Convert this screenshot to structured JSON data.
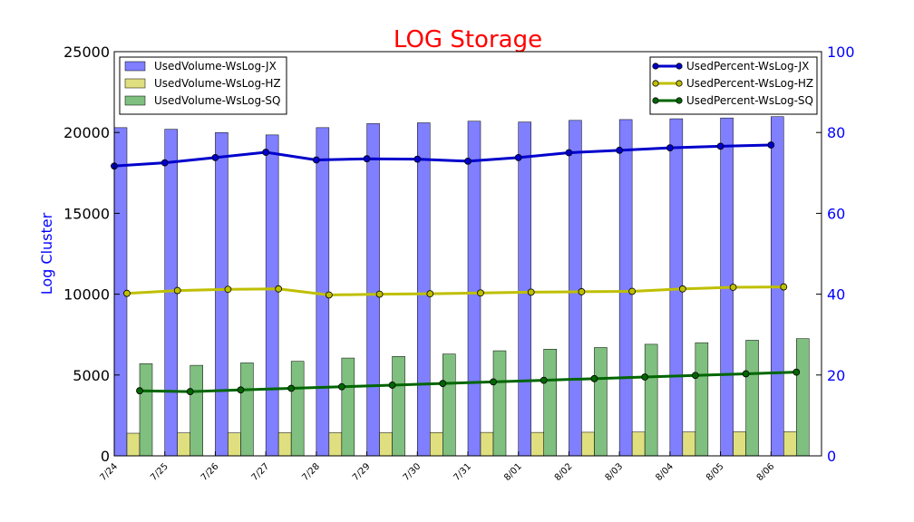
{
  "chart_data": {
    "type": "bar",
    "title": "LOG Storage",
    "title_color": "#ff0000",
    "ylabel": "Log Cluster",
    "ylabel_color": "#0000ff",
    "y2label": "",
    "ylim": [
      0,
      25000
    ],
    "y2lim": [
      0,
      100
    ],
    "yticks": [
      "0",
      "5000",
      "10000",
      "15000",
      "20000",
      "25000"
    ],
    "y2ticks": [
      "0",
      "20",
      "40",
      "60",
      "80",
      "100"
    ],
    "y2tick_color": "#0000ff",
    "categories": [
      "7/24",
      "7/25",
      "7/26",
      "7/27",
      "7/28",
      "7/29",
      "7/30",
      "7/31",
      "8/01",
      "8/02",
      "8/03",
      "8/04",
      "8/05",
      "8/06"
    ],
    "grid": false,
    "legend_bars_position": "top-left",
    "legend_lines_position": "top-right",
    "bar_series": [
      {
        "name": "UsedVolume-WsLog-JX",
        "color": "#7f7fff",
        "values": [
          20300,
          20200,
          20000,
          19850,
          20300,
          20550,
          20600,
          20700,
          20650,
          20750,
          20800,
          20850,
          20900,
          20980
        ]
      },
      {
        "name": "UsedVolume-WsLog-HZ",
        "color": "#dfdf7f",
        "values": [
          1400,
          1420,
          1420,
          1430,
          1430,
          1430,
          1440,
          1450,
          1450,
          1460,
          1470,
          1480,
          1490,
          1490
        ]
      },
      {
        "name": "UsedVolume-WsLog-SQ",
        "color": "#7fbf7f",
        "values": [
          5700,
          5600,
          5750,
          5850,
          6050,
          6150,
          6300,
          6500,
          6600,
          6700,
          6900,
          7000,
          7150,
          7250
        ]
      }
    ],
    "line_series": [
      {
        "name": "UsedPercent-WsLog-JX",
        "color": "#0000cc",
        "values": [
          71.7,
          72.5,
          73.8,
          75.1,
          73.2,
          73.5,
          73.4,
          72.9,
          73.8,
          75.0,
          75.6,
          76.2,
          76.6,
          76.9
        ]
      },
      {
        "name": "UsedPercent-WsLog-HZ",
        "color": "#bfbf00",
        "values": [
          40.2,
          40.9,
          41.2,
          41.3,
          39.8,
          40.0,
          40.1,
          40.3,
          40.5,
          40.6,
          40.7,
          41.3,
          41.7,
          41.8
        ]
      },
      {
        "name": "UsedPercent-WsLog-SQ",
        "color": "#006600",
        "values": [
          16.1,
          15.9,
          16.3,
          16.7,
          17.1,
          17.5,
          17.9,
          18.3,
          18.7,
          19.1,
          19.5,
          19.9,
          20.3,
          20.7
        ]
      }
    ]
  }
}
